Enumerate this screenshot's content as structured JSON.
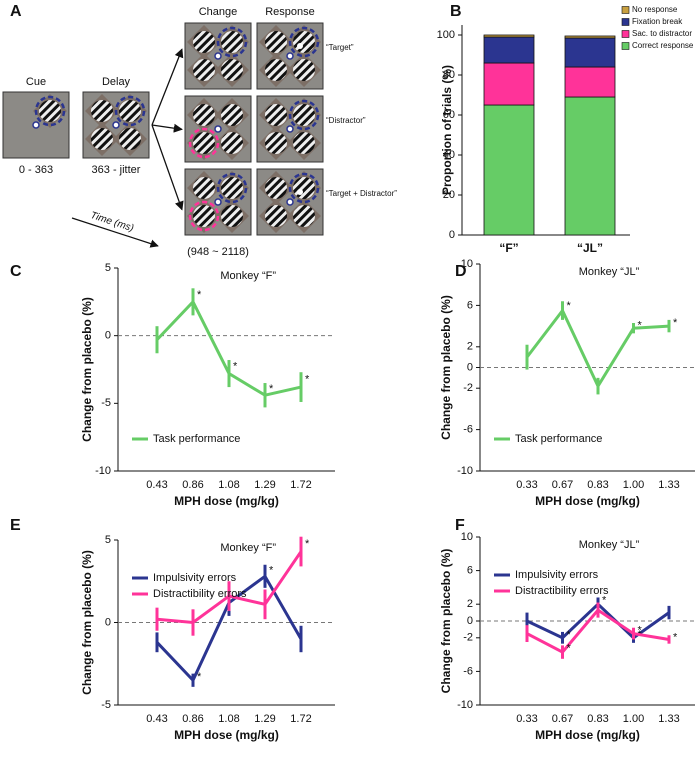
{
  "diagram": {
    "label": "A",
    "stages": [
      {
        "title": "Cue",
        "caption": "0 - 363"
      },
      {
        "title": "Delay",
        "caption": "363 - jitter"
      },
      {
        "title": "Change",
        "caption": "(948 ~ 2118)"
      },
      {
        "title": "Response"
      }
    ],
    "conditions": [
      "“Target”",
      "“Distractor”",
      "“Target + Distractor”"
    ],
    "time_label": "Time (ms)"
  },
  "chart_data": [
    {
      "label": "B",
      "type": "bar",
      "stacked": true,
      "categories": [
        "“F”",
        "“JL”"
      ],
      "ylabel": "Proportion of trials (%)",
      "ylim": [
        0,
        105
      ],
      "yticks": [
        0,
        20,
        40,
        60,
        80,
        100
      ],
      "legend": "upper right",
      "series": [
        {
          "name": "Correct response",
          "color": "#66cc66",
          "values": [
            65,
            69
          ]
        },
        {
          "name": "Sac. to distractor",
          "color": "#ff3399",
          "values": [
            21,
            15
          ]
        },
        {
          "name": "Fixation break",
          "color": "#2b3590",
          "values": [
            13,
            14.5
          ]
        },
        {
          "name": "No response",
          "color": "#c8a040",
          "values": [
            1,
            1
          ]
        }
      ]
    },
    {
      "label": "C",
      "type": "line",
      "title": "Monkey “F”",
      "xlabel": "MPH dose (mg/kg)",
      "ylabel": "Change from placebo (%)",
      "categories": [
        "0.43",
        "0.86",
        "1.08",
        "1.29",
        "1.72"
      ],
      "ylim": [
        -10,
        5
      ],
      "yticks": [
        -10,
        -5,
        0,
        5
      ],
      "zero_line": true,
      "legend": "lower left",
      "series": [
        {
          "name": "Task performance",
          "color": "#66cc66",
          "values": [
            -0.3,
            2.5,
            -2.8,
            -4.4,
            -3.8
          ],
          "errors": [
            1,
            1,
            1,
            0.9,
            1.1
          ],
          "significance": [
            null,
            "*",
            "*",
            "*",
            "*"
          ]
        }
      ]
    },
    {
      "label": "D",
      "type": "line",
      "title": "Monkey “JL”",
      "xlabel": "MPH dose (mg/kg)",
      "ylabel": "Change from placebo (%)",
      "categories": [
        "0.33",
        "0.67",
        "0.83",
        "1.00",
        "1.33"
      ],
      "ylim": [
        -10,
        10
      ],
      "yticks": [
        -10,
        -6,
        -2,
        0,
        2,
        6,
        10
      ],
      "zero_line": true,
      "legend": "lower left",
      "series": [
        {
          "name": "Task performance",
          "color": "#66cc66",
          "values": [
            1,
            5.5,
            -1.8,
            3.8,
            4
          ],
          "errors": [
            1.2,
            0.9,
            0.8,
            0.5,
            0.6
          ],
          "significance": [
            null,
            "*",
            null,
            "*",
            "*"
          ]
        }
      ]
    },
    {
      "label": "E",
      "type": "line",
      "title": "Monkey “F”",
      "xlabel": "MPH dose (mg/kg)",
      "ylabel": "Change from placebo (%)",
      "categories": [
        "0.43",
        "0.86",
        "1.08",
        "1.29",
        "1.72"
      ],
      "ylim": [
        -5,
        5
      ],
      "yticks": [
        -5,
        0,
        5
      ],
      "zero_line": true,
      "legend": "upper left",
      "series": [
        {
          "name": "Impulsivity errors",
          "color": "#2b3590",
          "values": [
            -1.2,
            -3.5,
            1.2,
            2.8,
            -1
          ],
          "errors": [
            0.6,
            0.4,
            0.8,
            0.7,
            0.8
          ],
          "significance": [
            null,
            "*",
            null,
            "*",
            null
          ]
        },
        {
          "name": "Distractibility errors",
          "color": "#ff3399",
          "values": [
            0.2,
            0,
            1.6,
            1.1,
            4.3
          ],
          "errors": [
            0.7,
            0.8,
            0.9,
            0.9,
            0.9
          ],
          "significance": [
            null,
            null,
            null,
            null,
            "*"
          ]
        }
      ]
    },
    {
      "label": "F",
      "type": "line",
      "title": "Monkey “JL”",
      "xlabel": "MPH dose (mg/kg)",
      "ylabel": "Change from placebo (%)",
      "categories": [
        "0.33",
        "0.67",
        "0.83",
        "1.00",
        "1.33"
      ],
      "ylim": [
        -10,
        10
      ],
      "yticks": [
        -10,
        -6,
        -2,
        0,
        2,
        6,
        10
      ],
      "zero_line": true,
      "legend": "upper left",
      "series": [
        {
          "name": "Impulsivity errors",
          "color": "#2b3590",
          "values": [
            0,
            -2,
            2,
            -2,
            1
          ],
          "errors": [
            1,
            0.7,
            0.8,
            0.6,
            0.8
          ],
          "significance": [
            null,
            "*",
            "*",
            "*",
            null
          ]
        },
        {
          "name": "Distractibility errors",
          "color": "#ff3399",
          "values": [
            -1.5,
            -3.7,
            1.3,
            -1.5,
            -2.2
          ],
          "errors": [
            1,
            0.8,
            0.9,
            0.7,
            0.5
          ],
          "significance": [
            null,
            "*",
            null,
            "*",
            "*"
          ]
        }
      ]
    }
  ]
}
